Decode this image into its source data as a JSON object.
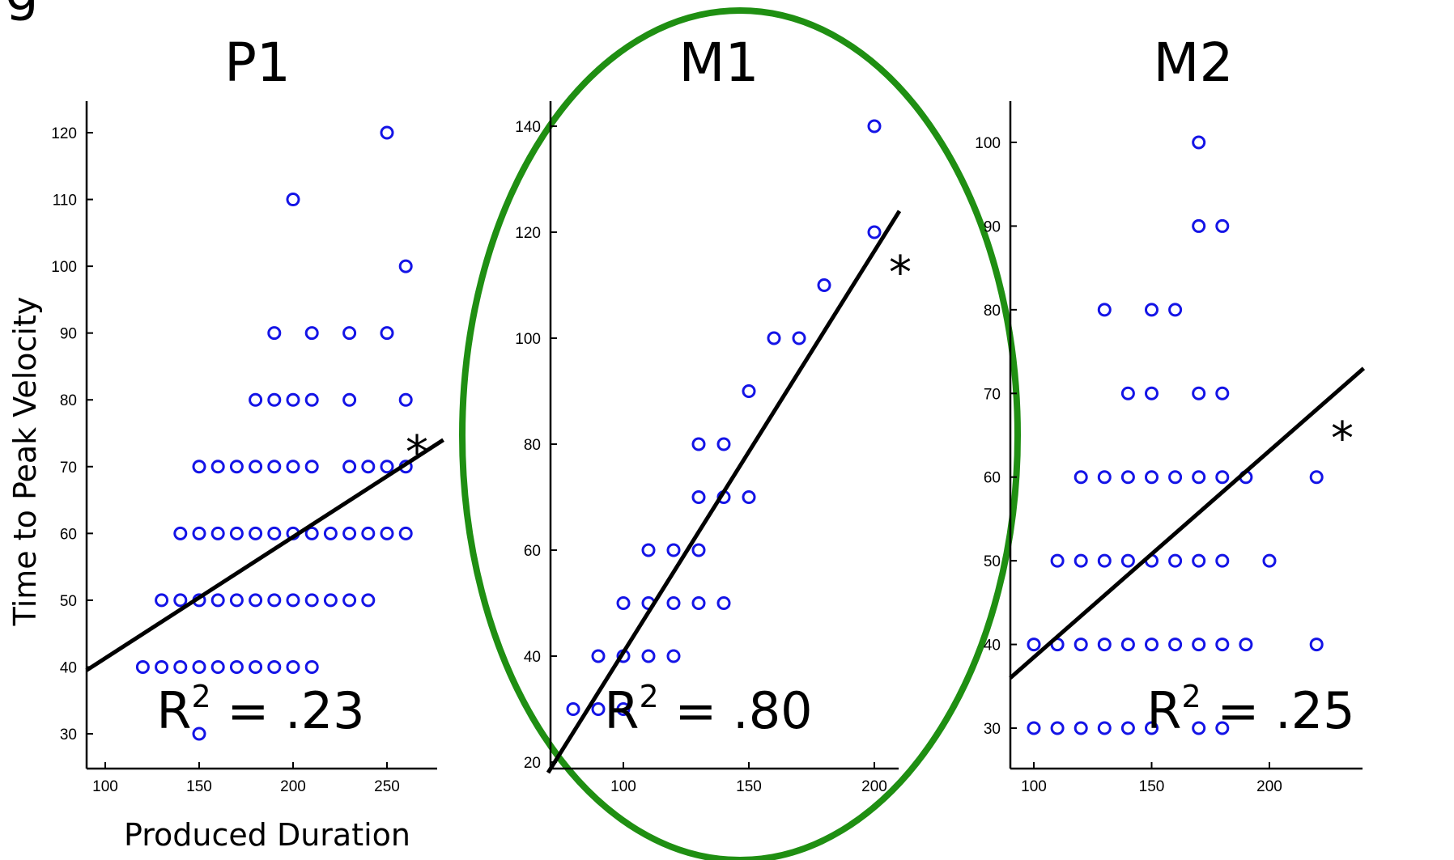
{
  "figure": {
    "letter": "g",
    "xlabel": "Produced Duration",
    "ylabel": "Time to Peak Velocity",
    "highlight_color": "#1f8f12",
    "marker_color": "#1414e6"
  },
  "chart_data": [
    {
      "type": "scatter",
      "title": "P1",
      "r2_label": "R",
      "r2_sup": "2",
      "r2_value": " = .23",
      "significance": "*",
      "xlim": [
        90,
        280
      ],
      "ylim": [
        25,
        125
      ],
      "xticks": [
        100,
        150,
        200,
        250
      ],
      "yticks": [
        30,
        40,
        50,
        60,
        70,
        80,
        90,
        100,
        110,
        120
      ],
      "fit": [
        [
          90,
          39.5
        ],
        [
          280,
          74
        ]
      ],
      "points": [
        [
          150,
          30
        ],
        [
          120,
          40
        ],
        [
          130,
          40
        ],
        [
          140,
          40
        ],
        [
          150,
          40
        ],
        [
          160,
          40
        ],
        [
          170,
          40
        ],
        [
          180,
          40
        ],
        [
          190,
          40
        ],
        [
          200,
          40
        ],
        [
          210,
          40
        ],
        [
          130,
          50
        ],
        [
          140,
          50
        ],
        [
          150,
          50
        ],
        [
          160,
          50
        ],
        [
          170,
          50
        ],
        [
          180,
          50
        ],
        [
          190,
          50
        ],
        [
          200,
          50
        ],
        [
          210,
          50
        ],
        [
          220,
          50
        ],
        [
          230,
          50
        ],
        [
          240,
          50
        ],
        [
          140,
          60
        ],
        [
          150,
          60
        ],
        [
          160,
          60
        ],
        [
          170,
          60
        ],
        [
          180,
          60
        ],
        [
          190,
          60
        ],
        [
          200,
          60
        ],
        [
          210,
          60
        ],
        [
          220,
          60
        ],
        [
          230,
          60
        ],
        [
          240,
          60
        ],
        [
          250,
          60
        ],
        [
          260,
          60
        ],
        [
          150,
          70
        ],
        [
          160,
          70
        ],
        [
          170,
          70
        ],
        [
          180,
          70
        ],
        [
          190,
          70
        ],
        [
          200,
          70
        ],
        [
          210,
          70
        ],
        [
          230,
          70
        ],
        [
          240,
          70
        ],
        [
          250,
          70
        ],
        [
          260,
          70
        ],
        [
          180,
          80
        ],
        [
          190,
          80
        ],
        [
          200,
          80
        ],
        [
          210,
          80
        ],
        [
          230,
          80
        ],
        [
          260,
          80
        ],
        [
          190,
          90
        ],
        [
          210,
          90
        ],
        [
          230,
          90
        ],
        [
          250,
          90
        ],
        [
          260,
          100
        ],
        [
          200,
          110
        ],
        [
          250,
          120
        ]
      ]
    },
    {
      "type": "scatter",
      "title": "M1",
      "r2_label": "R",
      "r2_sup": "2",
      "r2_value": " = .80",
      "significance": "*",
      "xlim": [
        70,
        210
      ],
      "ylim": [
        18,
        146
      ],
      "xticks": [
        100,
        150,
        200
      ],
      "yticks": [
        20,
        40,
        60,
        80,
        100,
        120,
        140
      ],
      "fit": [
        [
          70,
          18
        ],
        [
          210,
          124
        ]
      ],
      "points": [
        [
          80,
          30
        ],
        [
          90,
          30
        ],
        [
          100,
          30
        ],
        [
          90,
          40
        ],
        [
          100,
          40
        ],
        [
          110,
          40
        ],
        [
          120,
          40
        ],
        [
          100,
          50
        ],
        [
          110,
          50
        ],
        [
          120,
          50
        ],
        [
          130,
          50
        ],
        [
          140,
          50
        ],
        [
          110,
          60
        ],
        [
          120,
          60
        ],
        [
          130,
          60
        ],
        [
          130,
          70
        ],
        [
          140,
          70
        ],
        [
          150,
          70
        ],
        [
          130,
          80
        ],
        [
          140,
          80
        ],
        [
          150,
          90
        ],
        [
          160,
          100
        ],
        [
          170,
          100
        ],
        [
          180,
          110
        ],
        [
          200,
          120
        ],
        [
          200,
          140
        ]
      ]
    },
    {
      "type": "scatter",
      "title": "M2",
      "r2_label": "R",
      "r2_sup": "2",
      "r2_value": " = .25",
      "significance": "*",
      "xlim": [
        90,
        240
      ],
      "ylim": [
        25,
        105
      ],
      "xticks": [
        100,
        150,
        200
      ],
      "yticks": [
        30,
        40,
        50,
        60,
        70,
        80,
        90,
        100
      ],
      "fit": [
        [
          90,
          36
        ],
        [
          240,
          73
        ]
      ],
      "points": [
        [
          100,
          30
        ],
        [
          110,
          30
        ],
        [
          120,
          30
        ],
        [
          130,
          30
        ],
        [
          140,
          30
        ],
        [
          150,
          30
        ],
        [
          170,
          30
        ],
        [
          180,
          30
        ],
        [
          100,
          40
        ],
        [
          110,
          40
        ],
        [
          120,
          40
        ],
        [
          130,
          40
        ],
        [
          140,
          40
        ],
        [
          150,
          40
        ],
        [
          160,
          40
        ],
        [
          170,
          40
        ],
        [
          180,
          40
        ],
        [
          190,
          40
        ],
        [
          220,
          40
        ],
        [
          110,
          50
        ],
        [
          120,
          50
        ],
        [
          130,
          50
        ],
        [
          140,
          50
        ],
        [
          150,
          50
        ],
        [
          160,
          50
        ],
        [
          170,
          50
        ],
        [
          180,
          50
        ],
        [
          200,
          50
        ],
        [
          120,
          60
        ],
        [
          130,
          60
        ],
        [
          140,
          60
        ],
        [
          150,
          60
        ],
        [
          160,
          60
        ],
        [
          170,
          60
        ],
        [
          180,
          60
        ],
        [
          190,
          60
        ],
        [
          220,
          60
        ],
        [
          140,
          70
        ],
        [
          150,
          70
        ],
        [
          170,
          70
        ],
        [
          180,
          70
        ],
        [
          130,
          80
        ],
        [
          150,
          80
        ],
        [
          160,
          80
        ],
        [
          170,
          90
        ],
        [
          180,
          90
        ],
        [
          170,
          100
        ]
      ]
    }
  ]
}
